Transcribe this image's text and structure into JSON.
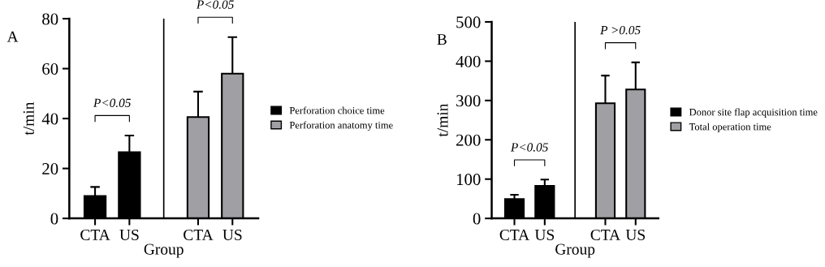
{
  "chart_data": [
    {
      "type": "bar",
      "title": "A",
      "xlabel": "Group",
      "ylabel": "t/min",
      "categories": [
        "CTA",
        "US",
        null,
        "CTA",
        "US"
      ],
      "series": [
        {
          "name": "Perforation choice time",
          "color": "#000000",
          "values": [
            9,
            26.5,
            null,
            null,
            null
          ],
          "errors": [
            [
              9,
              12.6
            ],
            [
              26.5,
              33.2
            ],
            null,
            null,
            null
          ]
        },
        {
          "name": "Perforation anatomy time",
          "color": "#a0a0a4",
          "values": [
            null,
            null,
            null,
            40.6,
            58
          ],
          "errors": [
            null,
            null,
            null,
            [
              40.6,
              50.8
            ],
            [
              58,
              72.6
            ]
          ]
        }
      ],
      "ylim": [
        0,
        80
      ],
      "yticks": [
        0,
        20,
        40,
        60,
        80
      ],
      "legend": "right",
      "annotations": [
        "P<0.05",
        "P<0.05"
      ]
    },
    {
      "type": "bar",
      "title": "B",
      "xlabel": "Group",
      "ylabel": "t/min",
      "categories": [
        "CTA",
        "US",
        null,
        "CTA",
        "US"
      ],
      "series": [
        {
          "name": "Donor site flap acquisition time",
          "color": "#000000",
          "values": [
            49,
            83,
            null,
            null,
            null
          ],
          "errors": [
            [
              49,
              60
            ],
            [
              83,
              99
            ],
            null,
            null,
            null
          ]
        },
        {
          "name": "Total operation time",
          "color": "#a0a0a4",
          "values": [
            null,
            null,
            null,
            293,
            328
          ],
          "errors": [
            null,
            null,
            null,
            [
              293,
              363.4
            ],
            [
              328,
              397
            ]
          ]
        }
      ],
      "ylim": [
        0,
        500
      ],
      "yticks": [
        0,
        100,
        200,
        300,
        400,
        500
      ],
      "legend": "right",
      "annotations": [
        "P<0.05",
        "P >0.05"
      ]
    }
  ]
}
